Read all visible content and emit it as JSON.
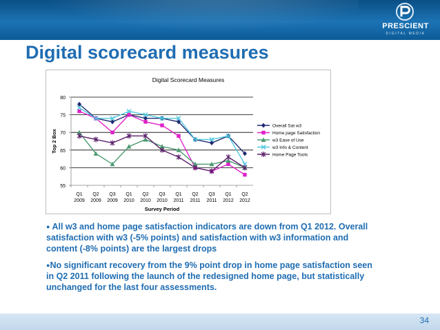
{
  "slide": {
    "title": "Digital scorecard measures",
    "page_number": "34",
    "colors": {
      "header": "#1565a8",
      "title": "#1f6db2",
      "bullet_text": "#1f6db2"
    },
    "bullets": [
      "All w3 and home page satisfaction indicators are down from Q1 2012. Overall satisfaction with w3 (-5% points) and satisfaction with w3 information and content (-8% points) are the largest drops",
      "No significant recovery from the 9% point drop in home page satisfaction seen in Q2 2011 following the launch of the redesigned home page, but statistically unchanged for the last four assessments."
    ]
  },
  "logo": {
    "name": "PRESCIENT",
    "tagline": "DIGITAL MEDIA",
    "icon": "prescient-p-icon"
  },
  "chart_data": {
    "type": "line",
    "title": "Digital Scorecard Measures",
    "xlabel": "Survey Period",
    "ylabel": "Top 2 Box",
    "ylim": [
      55,
      80
    ],
    "yticks": [
      55,
      60,
      65,
      70,
      75,
      80
    ],
    "grid": true,
    "legend_position": "right",
    "categories": [
      [
        "Q1",
        "2009"
      ],
      [
        "Q2",
        "2009"
      ],
      [
        "Q3",
        "2009"
      ],
      [
        "Q1",
        "2010"
      ],
      [
        "Q2",
        "2010"
      ],
      [
        "Q3",
        "2010"
      ],
      [
        "Q1",
        "2011"
      ],
      [
        "Q2",
        "2011"
      ],
      [
        "Q3",
        "2011"
      ],
      [
        "Q1",
        "2012"
      ],
      [
        "Q2",
        "2012"
      ]
    ],
    "series": [
      {
        "name": "Overall Sat w3",
        "color": "#1f2a70",
        "marker": "diamond",
        "values": [
          78,
          74,
          73,
          75,
          74,
          74,
          73,
          68,
          67,
          69,
          64
        ]
      },
      {
        "name": "Home page Satisfaction",
        "color": "#e020c8",
        "marker": "square",
        "values": [
          76,
          74,
          70,
          75,
          73,
          72,
          69,
          60,
          59,
          61,
          58
        ]
      },
      {
        "name": "w3 Ease of Use",
        "color": "#4c9a72",
        "marker": "triangle",
        "values": [
          70,
          64,
          61,
          66,
          68,
          66,
          65,
          61,
          61,
          62,
          60
        ]
      },
      {
        "name": "w3 Info & Content",
        "color": "#50c8e0",
        "marker": "x",
        "values": [
          77,
          74,
          74,
          76,
          75,
          74,
          74,
          68,
          68,
          69,
          61
        ]
      },
      {
        "name": "Home Page Tools",
        "color": "#5a1f6a",
        "marker": "star",
        "values": [
          69,
          68,
          67,
          69,
          69,
          65,
          63,
          60,
          59,
          63,
          60
        ]
      }
    ]
  }
}
